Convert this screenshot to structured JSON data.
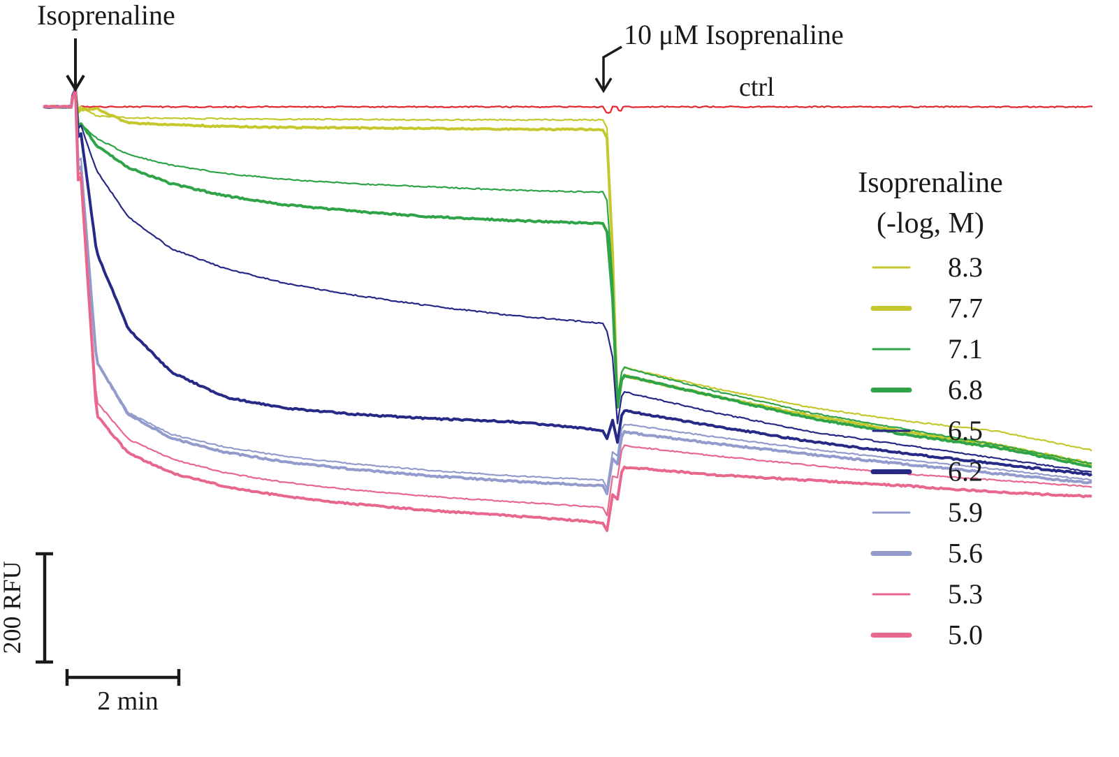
{
  "chart_data": {
    "type": "line",
    "xlabel": "",
    "ylabel": "",
    "grid": false,
    "legend_placement": "right",
    "annotations": {
      "first_addition": "Isoprenaline",
      "second_addition": "10 μM Isoprenaline",
      "control_label": "ctrl"
    },
    "scale_bars": {
      "y_label": "200 RFU",
      "y_value": 200,
      "x_label": "2 min",
      "x_value": 2
    },
    "legend": {
      "title_line1": "Isoprenaline",
      "title_line2": "(-log, M)"
    },
    "series": [
      {
        "name": "ctrl",
        "label": "ctrl",
        "color": "#e3262c",
        "legend": false,
        "thick": false,
        "pre": [
          0,
          0,
          0,
          0,
          0,
          0,
          0,
          0,
          0,
          0
        ],
        "post": [
          0,
          0,
          0,
          0,
          0,
          0
        ]
      },
      {
        "name": "8.3",
        "label": "8.3",
        "color": "#c5c82c",
        "legend": true,
        "thick": false,
        "pre": [
          0,
          -17,
          -20,
          -21,
          -22,
          -23,
          -23,
          -24,
          -24,
          -24
        ],
        "post": [
          -480,
          -520,
          -555,
          -580,
          -600,
          -635
        ]
      },
      {
        "name": "7.7",
        "label": "7.7",
        "color": "#c5c82c",
        "legend": true,
        "thick": true,
        "pre": [
          -5,
          -3,
          -30,
          -33,
          -36,
          -38,
          -39,
          -40,
          -41,
          -42
        ],
        "post": [
          -495,
          -535,
          -570,
          -600,
          -625,
          -660
        ]
      },
      {
        "name": "7.1",
        "label": "7.1",
        "color": "#2fa348",
        "legend": true,
        "thick": false,
        "pre": [
          -33,
          -58,
          -88,
          -108,
          -123,
          -134,
          -142,
          -148,
          -154,
          -158
        ],
        "post": [
          -480,
          -525,
          -565,
          -595,
          -625,
          -660
        ]
      },
      {
        "name": "6.8",
        "label": "6.8",
        "color": "#2fa348",
        "legend": true,
        "thick": true,
        "pre": [
          -30,
          -72,
          -112,
          -142,
          -164,
          -181,
          -193,
          -203,
          -210,
          -216
        ],
        "post": [
          -495,
          -535,
          -575,
          -605,
          -630,
          -665
        ]
      },
      {
        "name": "6.5",
        "label": "6.5",
        "color": "#262986",
        "legend": true,
        "thick": false,
        "pre": [
          -35,
          -118,
          -203,
          -262,
          -298,
          -326,
          -348,
          -368,
          -386,
          -400
        ],
        "post": [
          -525,
          -565,
          -600,
          -625,
          -650,
          -675
        ]
      },
      {
        "name": "6.2",
        "label": "6.2",
        "color": "#262986",
        "legend": true,
        "thick": true,
        "pre": [
          -50,
          -268,
          -410,
          -490,
          -536,
          -557,
          -568,
          -576,
          -582,
          -598
        ],
        "post": [
          -560,
          -590,
          -618,
          -640,
          -660,
          -680
        ]
      },
      {
        "name": "5.9",
        "label": "5.9",
        "color": "#939bcc",
        "legend": true,
        "thick": false,
        "pre": [
          -95,
          -470,
          -565,
          -605,
          -628,
          -646,
          -660,
          -672,
          -682,
          -690
        ],
        "post": [
          -585,
          -610,
          -632,
          -652,
          -670,
          -690
        ]
      },
      {
        "name": "5.6",
        "label": "5.6",
        "color": "#939bcc",
        "legend": true,
        "thick": true,
        "pre": [
          -110,
          -470,
          -568,
          -612,
          -638,
          -656,
          -670,
          -682,
          -692,
          -700
        ],
        "post": [
          -600,
          -622,
          -642,
          -660,
          -678,
          -695
        ]
      },
      {
        "name": "5.3",
        "label": "5.3",
        "color": "#e8678c",
        "legend": true,
        "thick": false,
        "pre": [
          -120,
          -545,
          -614,
          -650,
          -676,
          -694,
          -708,
          -720,
          -730,
          -740
        ],
        "post": [
          -625,
          -645,
          -662,
          -678,
          -690,
          -702
        ]
      },
      {
        "name": "5.0",
        "label": "5.0",
        "color": "#e8678c",
        "legend": true,
        "thick": true,
        "pre": [
          -130,
          -570,
          -640,
          -676,
          -701,
          -720,
          -734,
          -746,
          -756,
          -768
        ],
        "post": [
          -665,
          -680,
          -690,
          -700,
          -712,
          -720
        ]
      }
    ]
  }
}
